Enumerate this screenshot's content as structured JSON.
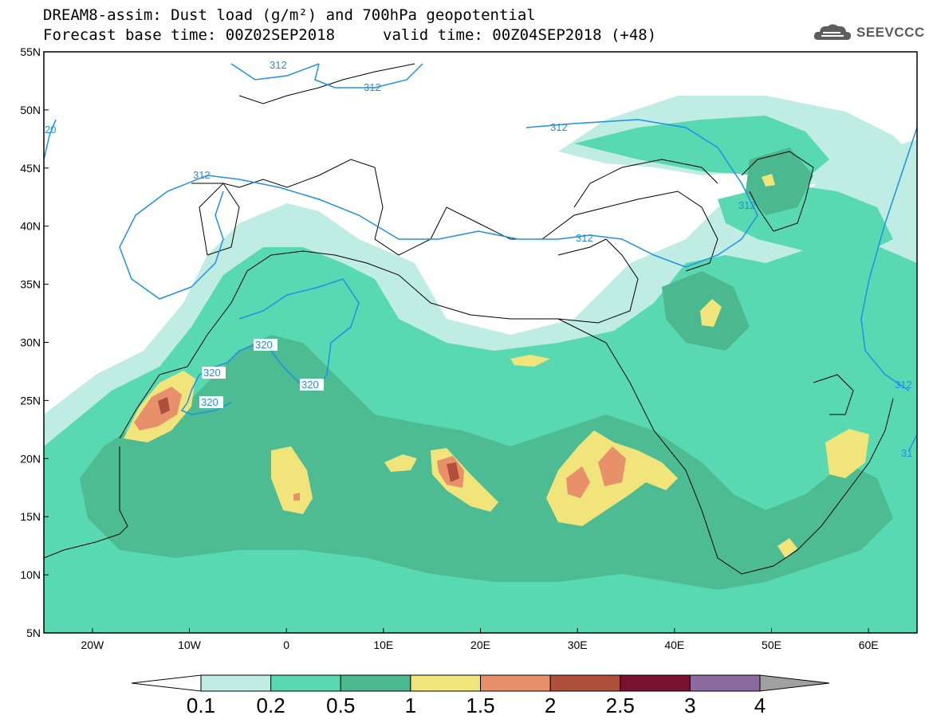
{
  "header": {
    "line1": "DREAM8-assim: Dust load (g/m²) and 700hPa geopotential",
    "line2a": "Forecast base time: 00Z02SEP2018",
    "line2b": "valid time: 00Z04SEP2018 (+48)"
  },
  "logo": {
    "text": "SEEVCCC",
    "icon": "cloud-logo-icon"
  },
  "map": {
    "lat_labels": [
      "55N",
      "50N",
      "45N",
      "40N",
      "35N",
      "30N",
      "25N",
      "20N",
      "15N",
      "10N",
      "5N"
    ],
    "lon_labels": [
      "20W",
      "10W",
      "0",
      "10E",
      "20E",
      "30E",
      "40E",
      "50E",
      "60E"
    ],
    "lon_range": [
      -25,
      65
    ],
    "lat_range": [
      5,
      55
    ],
    "contour_labels": [
      "312",
      "312",
      "312",
      "312",
      "312",
      "312",
      "20",
      "320",
      "320",
      "320",
      "320",
      "312",
      "31"
    ],
    "contour_color": "#1e90e8"
  },
  "colorbar": {
    "levels": [
      "0.1",
      "0.2",
      "0.5",
      "1",
      "1.5",
      "2",
      "2.5",
      "3",
      "4"
    ],
    "colors": [
      "#c0ede3",
      "#59d9b1",
      "#4bb890",
      "#f0e47a",
      "#e8906a",
      "#b0503c",
      "#7a1030",
      "#8a6aa0",
      "#a0a0a0"
    ]
  }
}
